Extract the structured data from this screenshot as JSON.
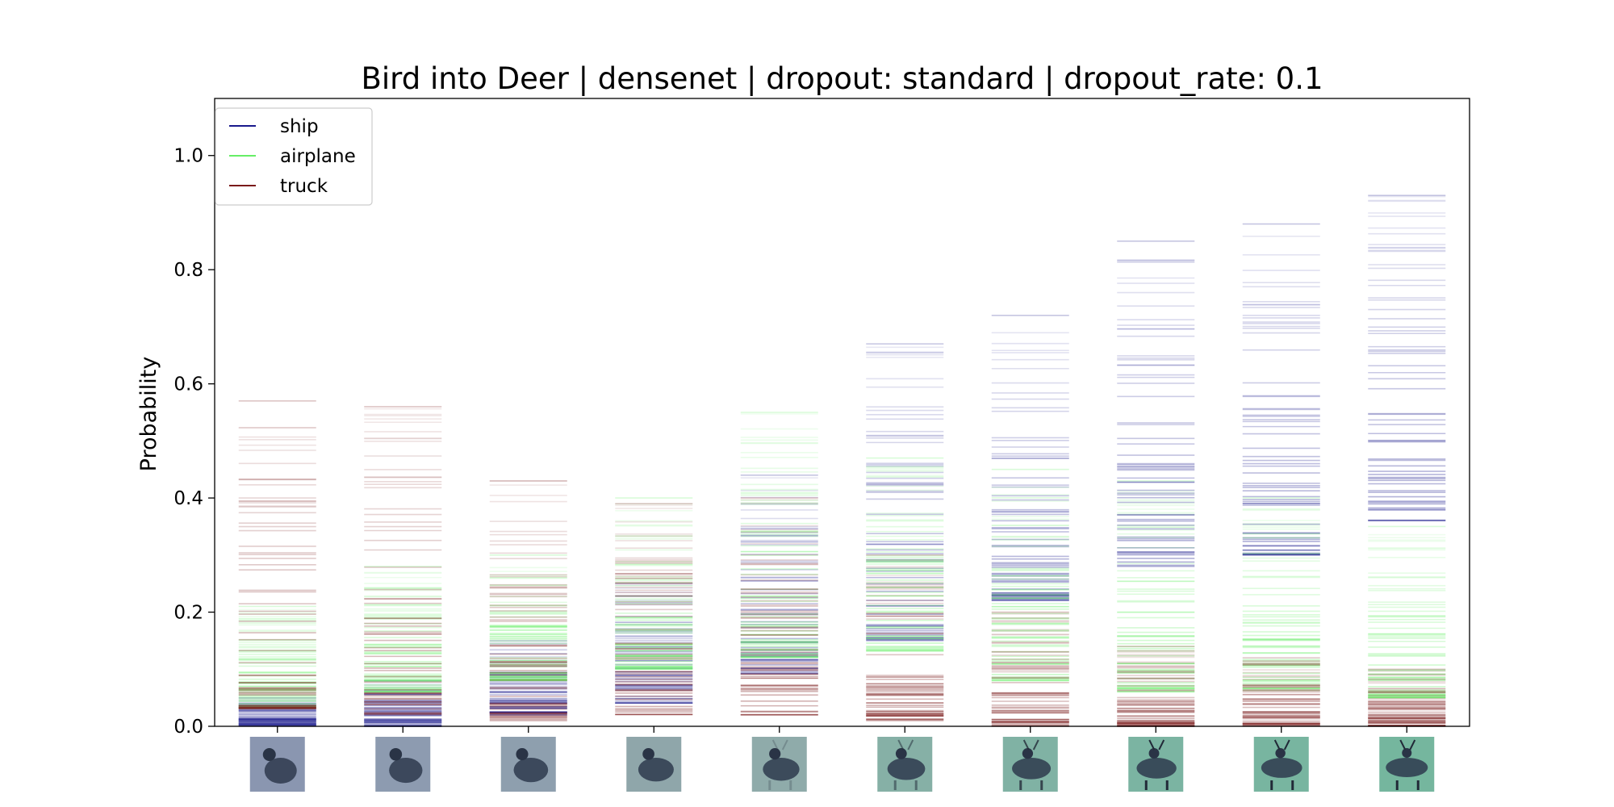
{
  "chart_data": {
    "type": "strip",
    "title": "Bird into Deer | densenet | dropout: standard | dropout_rate: 0.1",
    "xlabel": "",
    "ylabel": "Probability",
    "ylim": [
      0,
      1.1
    ],
    "yticks": [
      0.0,
      0.2,
      0.4,
      0.6,
      0.8,
      1.0
    ],
    "ytick_labels": [
      "0.0",
      "0.2",
      "0.4",
      "0.6",
      "0.8",
      "1.0"
    ],
    "grid": false,
    "legend": {
      "placement": "top-left",
      "entries": [
        {
          "label": "ship",
          "color": "#1a1a8c"
        },
        {
          "label": "airplane",
          "color": "#66ee66"
        },
        {
          "label": "truck",
          "color": "#7a1a1a"
        }
      ]
    },
    "x_thumbnails": [
      {
        "step": 0,
        "description": "bird",
        "tint": "#8a96b0"
      },
      {
        "step": 1,
        "description": "bird",
        "tint": "#8d9bb0"
      },
      {
        "step": 2,
        "description": "bird",
        "tint": "#8e9fae"
      },
      {
        "step": 3,
        "description": "bird-deer blend",
        "tint": "#8fa6aa"
      },
      {
        "step": 4,
        "description": "bird-deer blend",
        "tint": "#8fabaa"
      },
      {
        "step": 5,
        "description": "deer",
        "tint": "#86b0a6"
      },
      {
        "step": 6,
        "description": "deer",
        "tint": "#80b2a4"
      },
      {
        "step": 7,
        "description": "deer",
        "tint": "#7bb4a2"
      },
      {
        "step": 8,
        "description": "deer",
        "tint": "#78b5a0"
      },
      {
        "step": 9,
        "description": "deer",
        "tint": "#75b69e"
      }
    ],
    "series": [
      {
        "name": "ship",
        "color": "#1a1a8c",
        "min": [
          0.0,
          0.0,
          0.02,
          0.04,
          0.09,
          0.15,
          0.22,
          0.28,
          0.3,
          0.36
        ],
        "max": [
          0.05,
          0.08,
          0.15,
          0.25,
          0.44,
          0.67,
          0.72,
          0.85,
          0.88,
          0.93
        ]
      },
      {
        "name": "airplane",
        "color": "#66ee66",
        "min": [
          0.03,
          0.06,
          0.08,
          0.1,
          0.12,
          0.13,
          0.08,
          0.06,
          0.06,
          0.05
        ],
        "max": [
          0.21,
          0.28,
          0.3,
          0.4,
          0.55,
          0.47,
          0.45,
          0.43,
          0.4,
          0.35
        ]
      },
      {
        "name": "truck",
        "color": "#7a1a1a",
        "min": [
          0.03,
          0.02,
          0.01,
          0.02,
          0.02,
          0.01,
          0.0,
          0.0,
          0.0,
          0.0
        ],
        "max": [
          0.57,
          0.56,
          0.43,
          0.39,
          0.4,
          0.3,
          0.2,
          0.14,
          0.12,
          0.1
        ]
      }
    ]
  }
}
